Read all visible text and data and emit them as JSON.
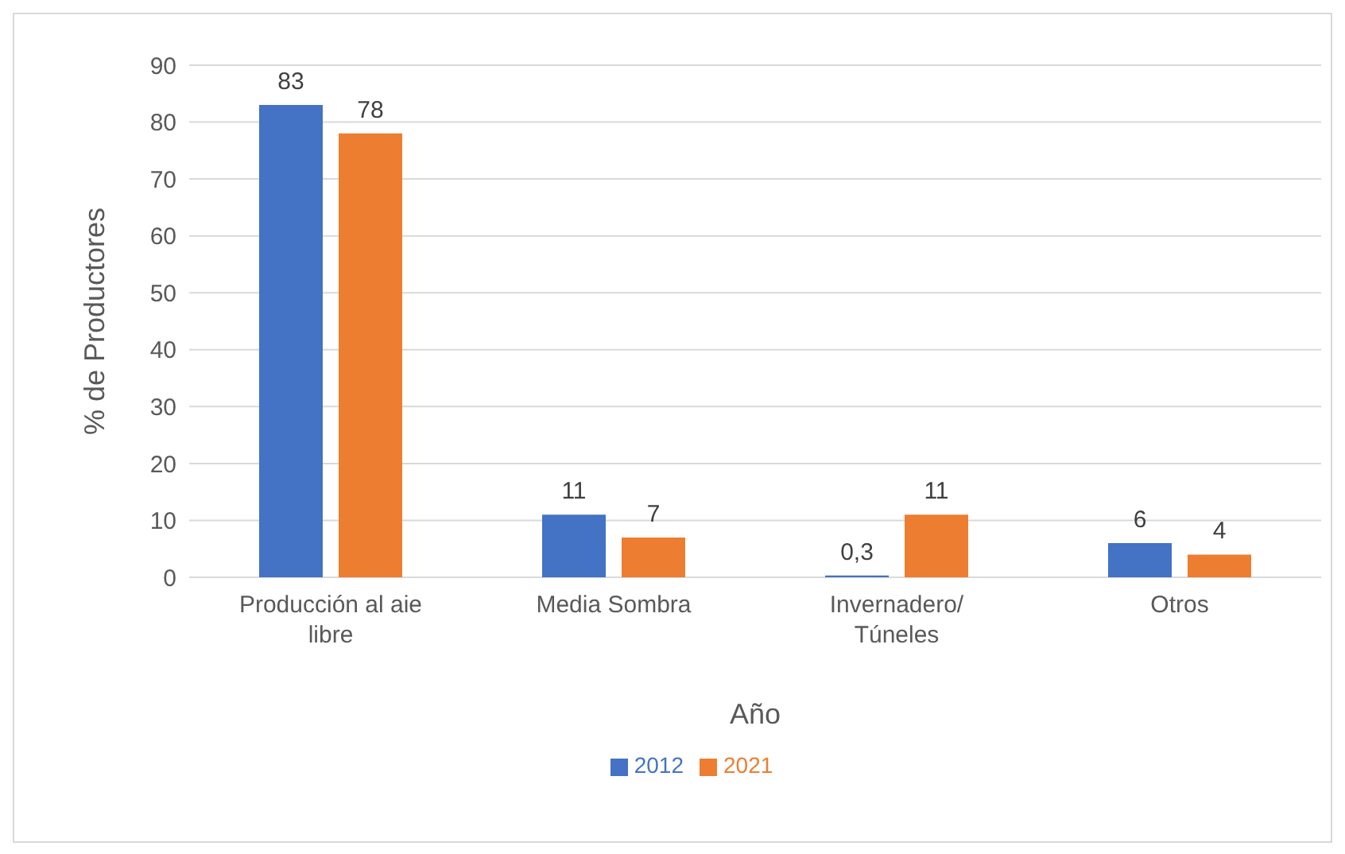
{
  "chart_data": {
    "type": "bar",
    "xlabel": "Año",
    "ylabel": "% de Productores",
    "categories": [
      "Producción al aie libre",
      "Media Sombra",
      "Invernadero/ Túneles",
      "Otros"
    ],
    "series": [
      {
        "name": "2012",
        "color": "#4472c4",
        "values": [
          83,
          11,
          0.3,
          6
        ],
        "value_labels": [
          "83",
          "11",
          "0,3",
          "6"
        ]
      },
      {
        "name": "2021",
        "color": "#ed7d31",
        "values": [
          78,
          7,
          11,
          4
        ],
        "value_labels": [
          "78",
          "7",
          "11",
          "4"
        ]
      }
    ],
    "ylim": [
      0,
      90
    ],
    "yticks": [
      0,
      10,
      20,
      30,
      40,
      50,
      60,
      70,
      80,
      90
    ],
    "grid": "y",
    "legend": "bottom"
  }
}
